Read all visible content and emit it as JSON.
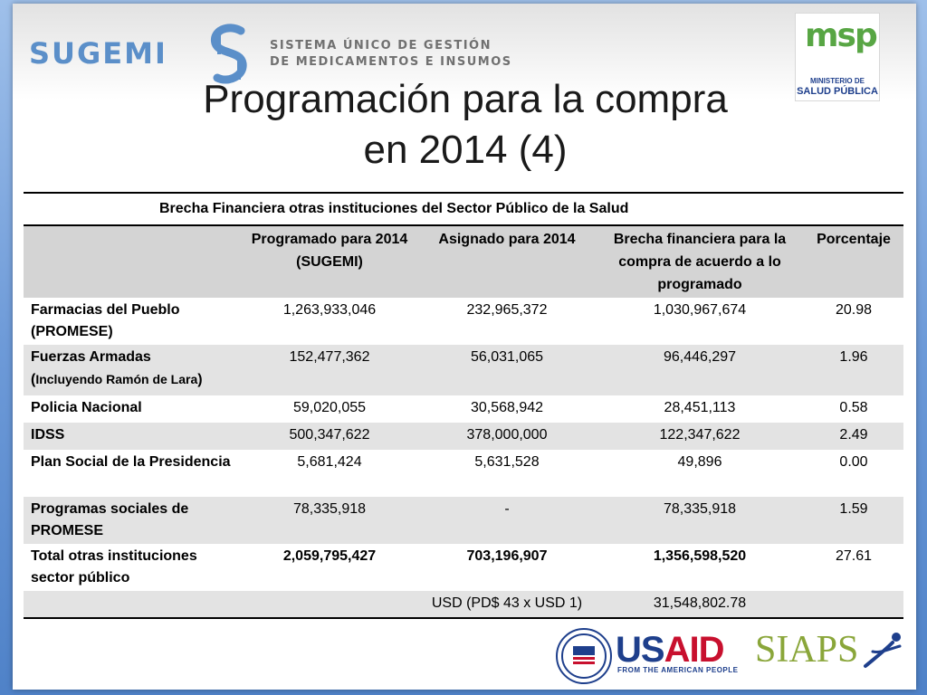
{
  "header": {
    "logo_name": "SUGEMI",
    "logo_subtitle_line1": "SISTEMA ÚNICO DE GESTIÓN",
    "logo_subtitle_line2": "DE MEDICAMENTOS E INSUMOS",
    "msp_logo_word": "msp",
    "msp_line1": "MINISTERIO DE",
    "msp_line2": "SALUD PÚBLICA"
  },
  "title_line1": "Programación para la compra",
  "title_line2": "en 2014 (4)",
  "table": {
    "caption": "Brecha Financiera otras instituciones del Sector Público de la Salud",
    "headers": [
      "",
      "Programado para 2014 (SUGEMI)",
      "Asignado para 2014",
      "Brecha financiera para la compra de acuerdo a lo programado",
      "Porcentaje"
    ],
    "rows": [
      {
        "label": "Farmacias del Pueblo (PROMESE)",
        "programado": "1,263,933,046",
        "asignado": "232,965,372",
        "brecha": "1,030,967,674",
        "porcentaje": "20.98"
      },
      {
        "label": "Fuerzas Armadas",
        "label_note": "Incluyendo Ramón de Lara",
        "programado": "152,477,362",
        "asignado": "56,031,065",
        "brecha": "96,446,297",
        "porcentaje": "1.96"
      },
      {
        "label": "Policia Nacional",
        "programado": "59,020,055",
        "asignado": "30,568,942",
        "brecha": "28,451,113",
        "porcentaje": "0.58"
      },
      {
        "label": "IDSS",
        "programado": "500,347,622",
        "asignado": "378,000,000",
        "brecha": "122,347,622",
        "porcentaje": "2.49"
      },
      {
        "label": "Plan Social de la Presidencia",
        "programado": "5,681,424",
        "asignado": "5,631,528",
        "brecha": "49,896",
        "porcentaje": "0.00"
      },
      {
        "label": "Programas sociales de PROMESE",
        "programado": "78,335,918",
        "asignado": "-",
        "brecha": "78,335,918",
        "porcentaje": "1.59"
      },
      {
        "label": "Total otras instituciones sector público",
        "programado": "2,059,795,427",
        "asignado": "703,196,907",
        "brecha": "1,356,598,520",
        "porcentaje": "27.61"
      }
    ],
    "usd_label": "USD (PD$ 43 x USD 1)",
    "usd_value": "31,548,802.78"
  },
  "footer": {
    "usaid_main": "US",
    "usaid_accent": "AID",
    "usaid_tagline": "FROM THE AMERICAN PEOPLE",
    "siaps": "SIAPS"
  }
}
